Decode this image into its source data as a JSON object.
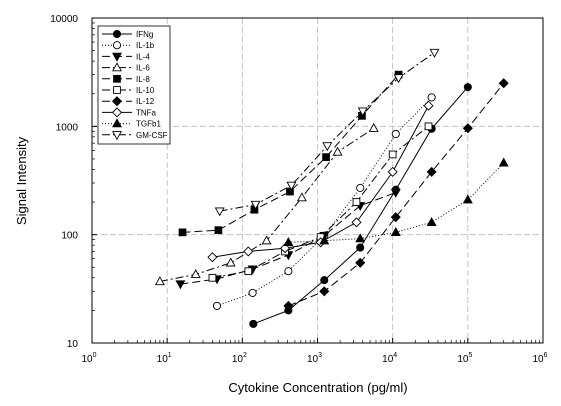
{
  "chart_data": {
    "type": "line",
    "xscale": "log",
    "yscale": "log",
    "xlim": [
      1,
      1000000
    ],
    "ylim": [
      10,
      10000
    ],
    "grid": true,
    "legend_position": "top-left",
    "xlabel": "Cytokine Concentration (pg/ml)",
    "ylabel": "Signal Intensity",
    "x_ticks": [
      {
        "base": "10",
        "exp": "0",
        "value": 1
      },
      {
        "base": "10",
        "exp": "1",
        "value": 10
      },
      {
        "base": "10",
        "exp": "2",
        "value": 100
      },
      {
        "base": "10",
        "exp": "3",
        "value": 1000
      },
      {
        "base": "10",
        "exp": "4",
        "value": 10000
      },
      {
        "base": "10",
        "exp": "5",
        "value": 100000
      },
      {
        "base": "10",
        "exp": "6",
        "value": 1000000
      }
    ],
    "y_ticks": [
      {
        "label": "10",
        "value": 10
      },
      {
        "label": "100",
        "value": 100
      },
      {
        "label": "1000",
        "value": 1000
      },
      {
        "label": "10000",
        "value": 10000
      }
    ],
    "series": [
      {
        "name": "IFNg",
        "marker": "circle",
        "filled": true,
        "dash": "solid",
        "x": [
          140,
          410,
          1230,
          3700,
          11000,
          33000,
          100000
        ],
        "y": [
          15,
          20,
          38,
          76,
          260,
          950,
          2300
        ]
      },
      {
        "name": "IL-1b",
        "marker": "circle",
        "filled": false,
        "dash": "dot",
        "x": [
          46,
          137,
          410,
          1230,
          3700,
          11000,
          33000
        ],
        "y": [
          22,
          29,
          46,
          98,
          270,
          850,
          1850
        ]
      },
      {
        "name": "IL-4",
        "marker": "triangle-down",
        "filled": true,
        "dash": "longdash",
        "x": [
          15,
          46,
          137,
          410,
          1230,
          3700,
          11000
        ],
        "y": [
          35,
          39,
          48,
          65,
          98,
          185,
          245
        ]
      },
      {
        "name": "IL-6",
        "marker": "triangle-up",
        "filled": false,
        "dash": "dashdot",
        "x": [
          8,
          24,
          70,
          210,
          620,
          1850,
          5600
        ],
        "y": [
          37,
          43,
          55,
          88,
          220,
          580,
          960
        ]
      },
      {
        "name": "IL-8",
        "marker": "square",
        "filled": true,
        "dash": "longdash",
        "x": [
          16,
          48,
          145,
          430,
          1300,
          3900,
          12000
        ],
        "y": [
          105,
          110,
          170,
          250,
          520,
          1250,
          3000
        ]
      },
      {
        "name": "IL-10",
        "marker": "square",
        "filled": false,
        "dash": "dashdot",
        "x": [
          40,
          120,
          370,
          1100,
          3300,
          10000,
          30000
        ],
        "y": [
          40,
          46,
          70,
          95,
          200,
          550,
          1000
        ]
      },
      {
        "name": "IL-12",
        "marker": "diamond",
        "filled": true,
        "dash": "longdash",
        "x": [
          410,
          1230,
          3700,
          11000,
          33000,
          100000,
          300000
        ],
        "y": [
          22,
          30,
          55,
          145,
          380,
          960,
          2500
        ]
      },
      {
        "name": "TNFa",
        "marker": "diamond",
        "filled": false,
        "dash": "solid",
        "x": [
          40,
          120,
          370,
          1100,
          3300,
          10000,
          30000
        ],
        "y": [
          62,
          70,
          75,
          85,
          130,
          380,
          1550
        ]
      },
      {
        "name": "TGFb1",
        "marker": "triangle-up",
        "filled": true,
        "dash": "dot",
        "x": [
          410,
          1230,
          3700,
          11000,
          33000,
          100000,
          300000
        ],
        "y": [
          85,
          88,
          92,
          105,
          130,
          210,
          460
        ]
      },
      {
        "name": "GM-CSF",
        "marker": "triangle-down",
        "filled": false,
        "dash": "dashdot",
        "x": [
          50,
          150,
          450,
          1350,
          4000,
          12000,
          36000
        ],
        "y": [
          165,
          190,
          285,
          660,
          1380,
          2800,
          4800
        ]
      }
    ]
  }
}
